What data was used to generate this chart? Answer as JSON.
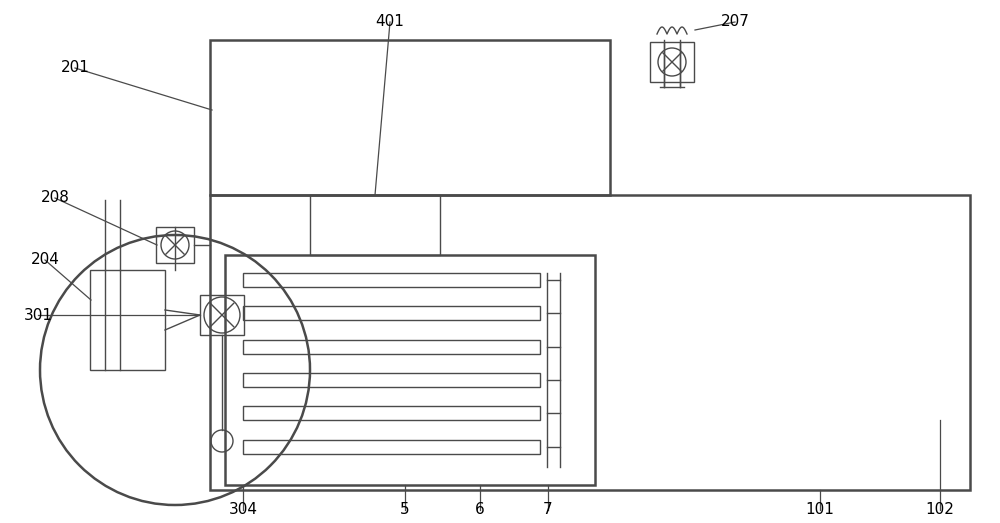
{
  "bg_color": "#ffffff",
  "line_color": "#4a4a4a",
  "lw_main": 1.8,
  "lw_thin": 1.0,
  "fig_w": 10.0,
  "fig_h": 5.23,
  "dpi": 100
}
